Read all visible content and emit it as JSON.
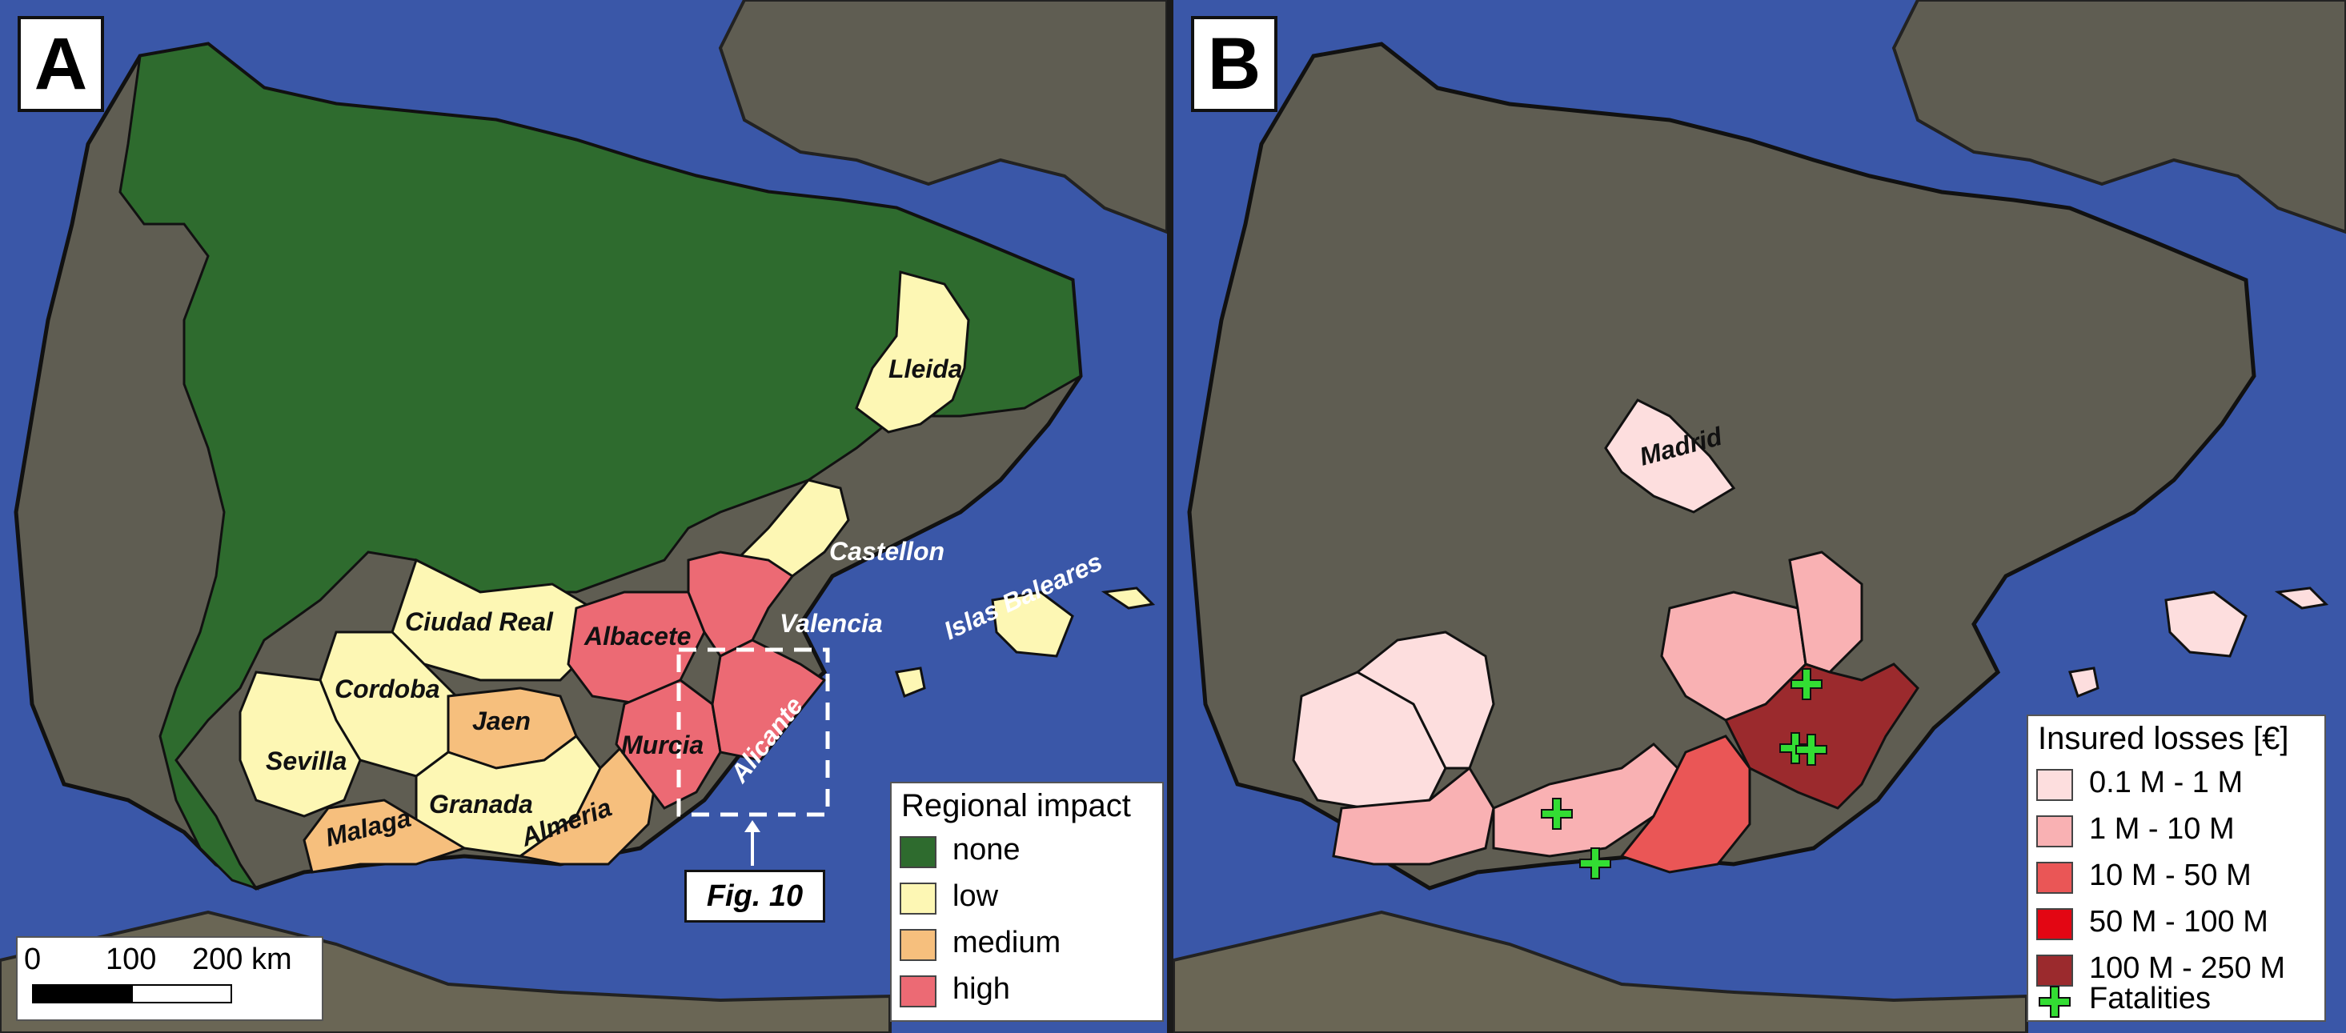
{
  "panels": {
    "a": {
      "letter": "A"
    },
    "b": {
      "letter": "B"
    }
  },
  "colors": {
    "sea": "#3a57a8",
    "land_background": "#5f5d52",
    "impact_none": "#2e6b2e",
    "impact_low": "#fdf7b4",
    "impact_medium": "#f6bf7d",
    "impact_high": "#ec6a74",
    "loss_0_1_1": "#fddede",
    "loss_1_10": "#f9b1b3",
    "loss_10_50": "#ea5656",
    "loss_50_100": "#e30613",
    "loss_100_250": "#9b2a2d",
    "fatalities": "#33dd33"
  },
  "panel_a_labels": {
    "lleida": "Lleida",
    "castellon": "Castellon",
    "valencia": "Valencia",
    "ciudad_real": "Ciudad Real",
    "albacete": "Albacete",
    "cordoba": "Cordoba",
    "jaen": "Jaen",
    "sevilla": "Sevilla",
    "murcia": "Murcia",
    "alicante": "Alicante",
    "granada": "Granada",
    "malaga": "Malaga",
    "almeria": "Almeria",
    "islas_baleares": "Islas Baleares"
  },
  "panel_b_labels": {
    "madrid": "Madrid"
  },
  "fig_callout": "Fig. 10",
  "scalebar": {
    "tick_0": "0",
    "tick_100": "100",
    "tick_200": "200 km"
  },
  "legend_a": {
    "title": "Regional impact",
    "items": [
      {
        "label": "none",
        "color": "#2e6b2e"
      },
      {
        "label": "low",
        "color": "#fdf7b4"
      },
      {
        "label": "medium",
        "color": "#f6bf7d"
      },
      {
        "label": "high",
        "color": "#ec6a74"
      }
    ]
  },
  "legend_b": {
    "title": "Insured losses [€]",
    "items": [
      {
        "label": "0.1 M - 1 M",
        "color": "#fddede"
      },
      {
        "label": "1 M - 10 M",
        "color": "#f9b1b3"
      },
      {
        "label": "10 M - 50 M",
        "color": "#ea5656"
      },
      {
        "label": "50 M - 100 M",
        "color": "#e30613"
      },
      {
        "label": "100 M - 250 M",
        "color": "#9b2a2d"
      }
    ],
    "fatalities_label": "Fatalities"
  }
}
